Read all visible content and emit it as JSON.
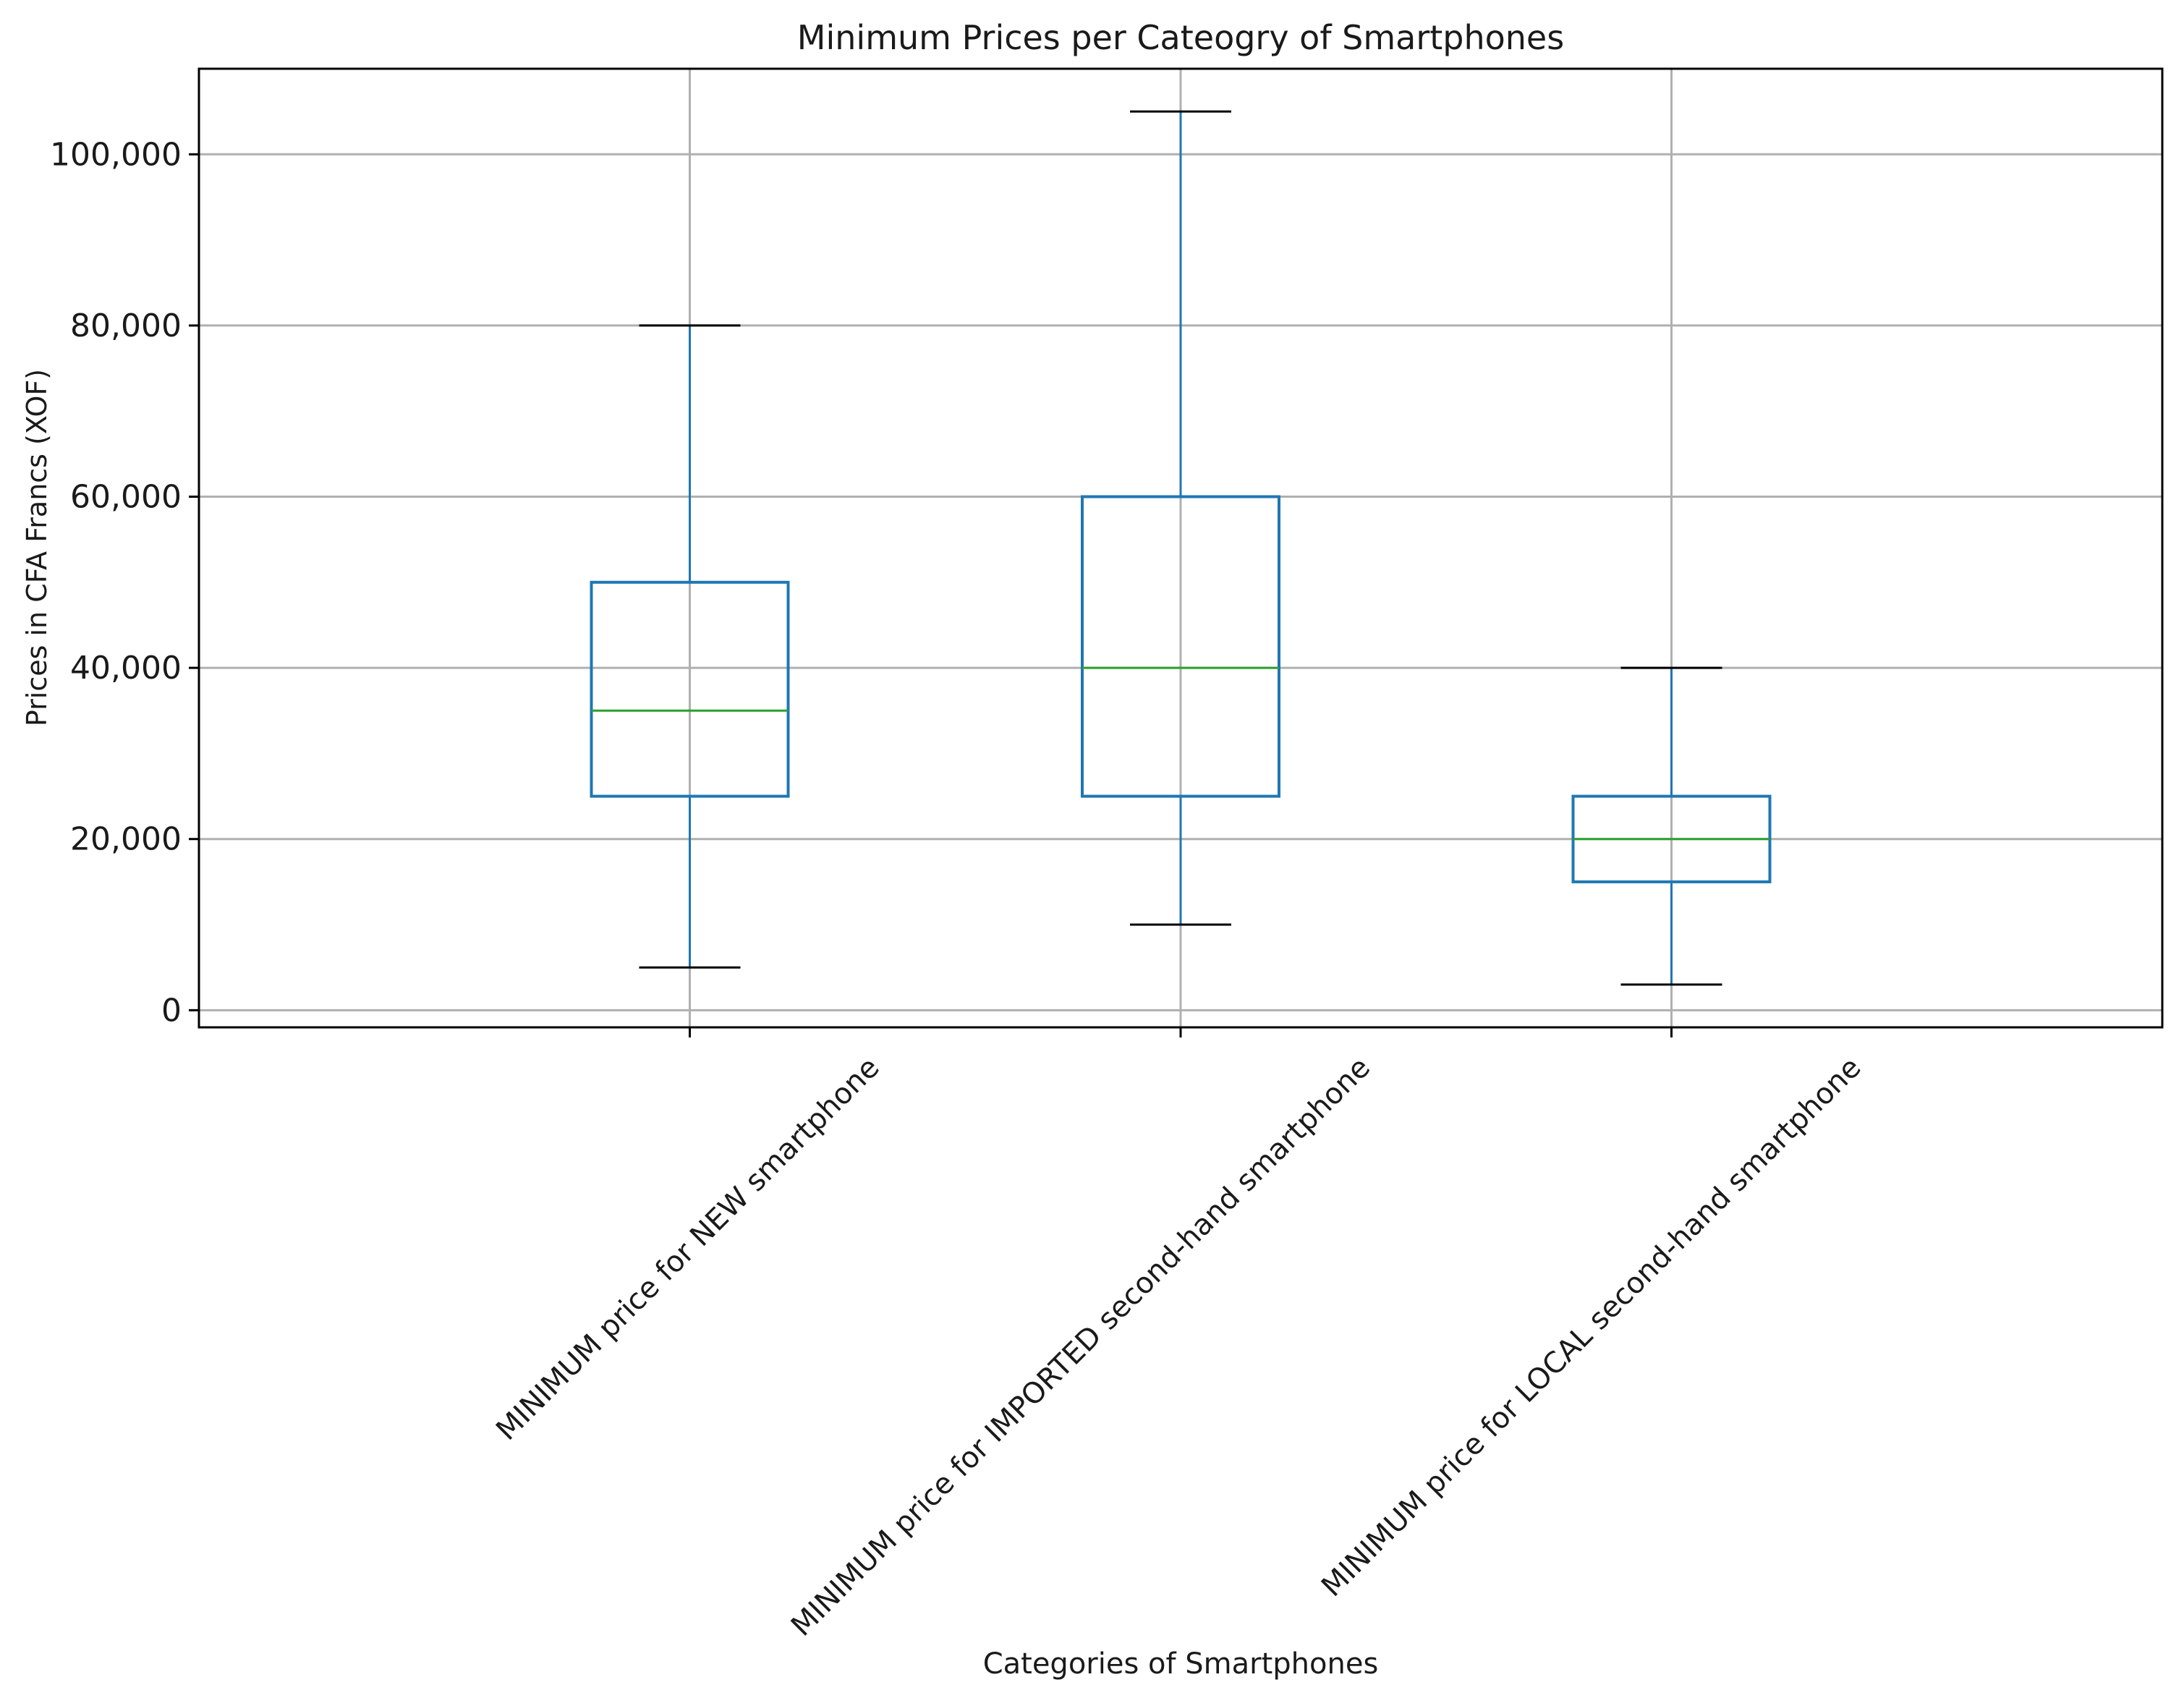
{
  "chart_data": {
    "type": "box",
    "title": "Minimum Prices per Cateogry of Smartphones",
    "xlabel": "Categories of Smartphones",
    "ylabel": "Prices in CFA Francs (XOF)",
    "ylim": [
      -2000,
      110000
    ],
    "yticks": [
      0,
      20000,
      40000,
      60000,
      80000,
      100000
    ],
    "ytick_labels": [
      "0",
      "20,000",
      "40,000",
      "60,000",
      "80,000",
      "100,000"
    ],
    "grid": true,
    "categories": [
      "MINIMUM price for NEW smartphone",
      "MINIMUM price for IMPORTED second-hand smartphone",
      "MINIMUM price for LOCAL second-hand smartphone"
    ],
    "boxes": [
      {
        "whisker_low": 5000,
        "q1": 25000,
        "median": 35000,
        "q3": 50000,
        "whisker_high": 80000
      },
      {
        "whisker_low": 10000,
        "q1": 25000,
        "median": 40000,
        "q3": 60000,
        "whisker_high": 105000
      },
      {
        "whisker_low": 3000,
        "q1": 15000,
        "median": 20000,
        "q3": 25000,
        "whisker_high": 40000
      }
    ],
    "colors": {
      "box": "#1f77b4",
      "median": "#2ca02c",
      "cap": "#000000",
      "grid": "#b0b0b0",
      "axis": "#000000"
    }
  }
}
